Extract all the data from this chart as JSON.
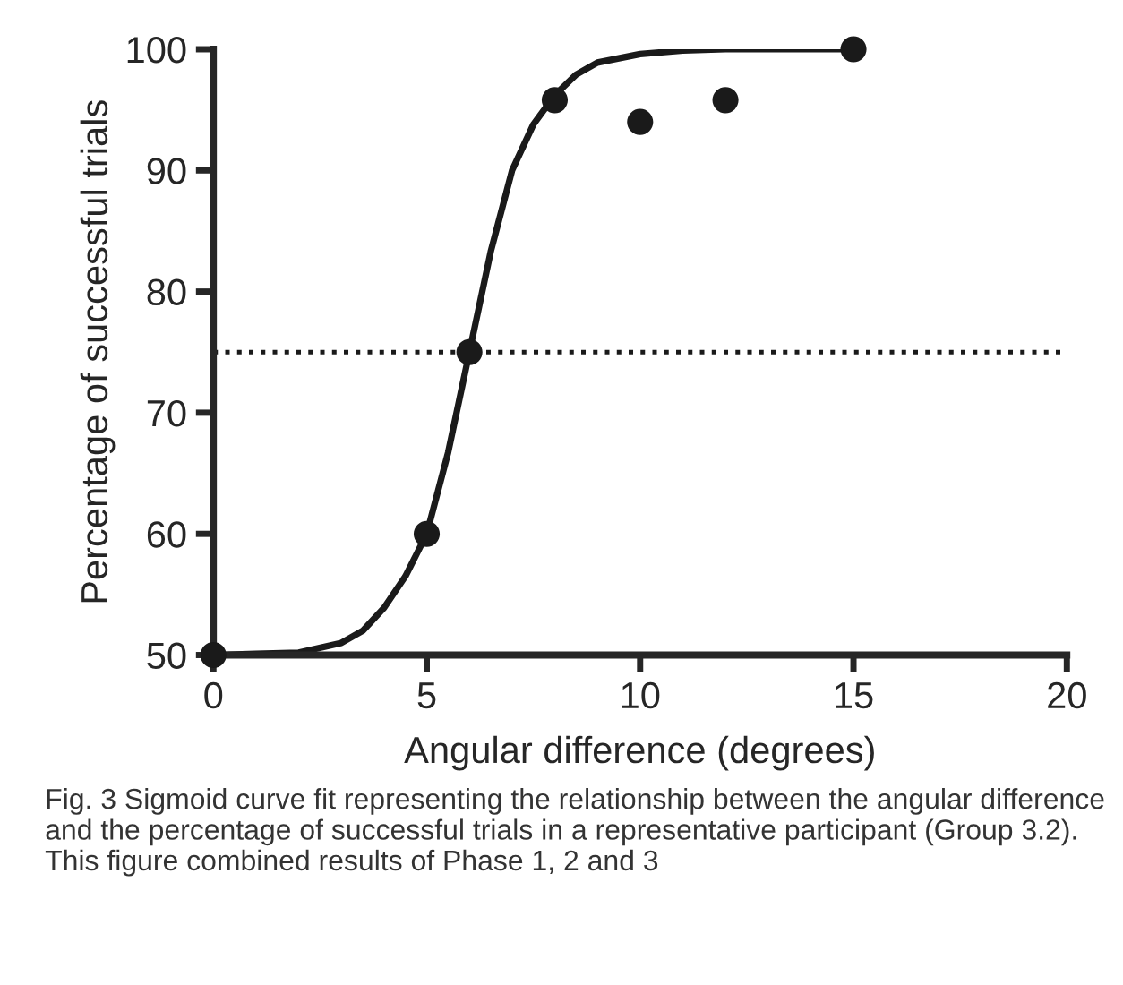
{
  "chart_data": {
    "type": "scatter",
    "xlabel": "Angular difference (degrees)",
    "ylabel": "Percentage of successful trials",
    "xlim": [
      0,
      20
    ],
    "xticks": [
      0,
      5,
      10,
      15,
      20
    ],
    "ylim": [
      50,
      100
    ],
    "yticks": [
      50,
      60,
      70,
      80,
      90,
      100
    ],
    "grid": false,
    "legend": false,
    "series": [
      {
        "type": "line",
        "color": "#1a1a1a",
        "marker": "none",
        "line_style": "solid",
        "x": [
          0,
          1,
          2,
          3,
          3.5,
          4,
          4.5,
          5,
          5.5,
          6,
          6.5,
          7,
          7.5,
          8,
          8.5,
          9,
          10,
          11,
          12,
          15
        ],
        "values": [
          50,
          50.1,
          50.2,
          51.0,
          52.0,
          53.9,
          56.5,
          60,
          66.7,
          75,
          83.3,
          90,
          93.8,
          96.2,
          97.9,
          98.9,
          99.6,
          99.9,
          100,
          100
        ]
      },
      {
        "color": "#1a1a1a",
        "marker": "circle",
        "x": [
          0,
          5,
          6,
          8,
          10,
          12,
          15
        ],
        "values": [
          50,
          60,
          75,
          95.8,
          94.0,
          95.8,
          100
        ]
      }
    ],
    "ref_lines": [
      {
        "axis": "y",
        "value": 75,
        "line_style": "dotted",
        "color": "#1a1a1a"
      }
    ],
    "annotations": [
      "Fig. 3 Sigmoid curve fit representing the relationship between the angular difference and the percentage of successful trials in a representative participant (Group 3.2). This figure combined results of Phase 1, 2 and 3"
    ]
  }
}
